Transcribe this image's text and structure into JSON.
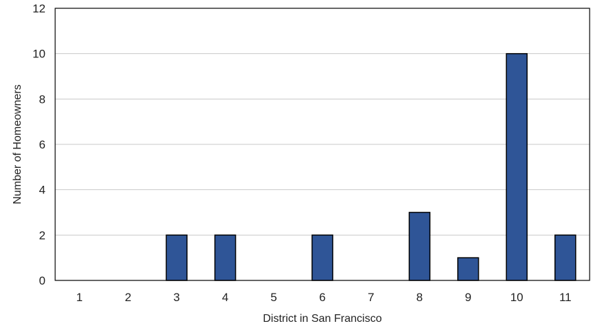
{
  "chart_data": {
    "type": "bar",
    "title": "",
    "xlabel": "District in San Francisco",
    "ylabel": "Number  of Homeowners",
    "categories": [
      "1",
      "2",
      "3",
      "4",
      "5",
      "6",
      "7",
      "8",
      "9",
      "10",
      "11"
    ],
    "values": [
      0,
      0,
      2,
      2,
      0,
      2,
      0,
      3,
      1,
      10,
      2
    ],
    "ylim": [
      0,
      12
    ],
    "yticks": [
      0,
      2,
      4,
      6,
      8,
      10,
      12
    ],
    "grid": true,
    "legend": "none",
    "colors": {
      "bar_fill": "#2f5597",
      "bar_stroke": "#000000",
      "grid": "#c8c8c8",
      "axis": "#000000"
    }
  }
}
